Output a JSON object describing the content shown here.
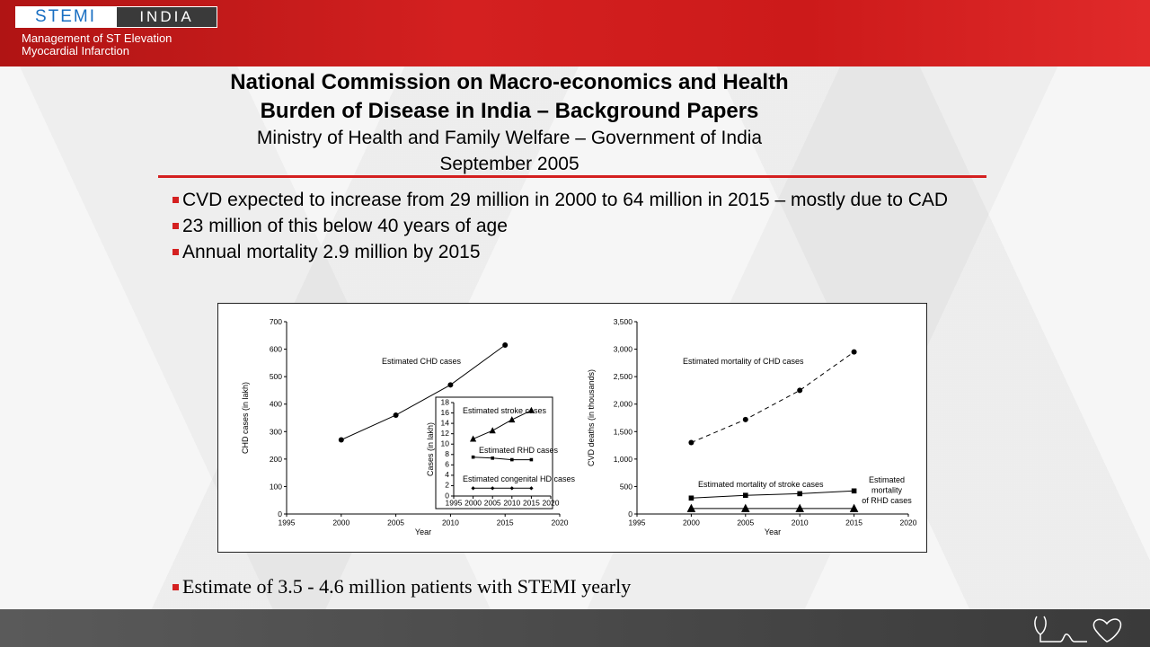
{
  "header": {
    "logo_left": "STEMI",
    "logo_right": "INDIA",
    "subtitle_line1": "Management of ST Elevation",
    "subtitle_line2": "Myocardial Infarction"
  },
  "title": {
    "line1": "National Commission on Macro-economics and Health",
    "line2": "Burden of Disease in India – Background Papers",
    "line3": "Ministry of Health and Family Welfare – Government of India",
    "line4": "September 2005"
  },
  "bullets": [
    "CVD  expected to increase from 29 million in 2000 to 64 million in 2015 – mostly due to CAD",
    "23 million of this below 40 years of age",
    "Annual mortality 2.9 million by 2015"
  ],
  "bottom_bullet": "Estimate of 3.5 - 4.6 million patients with STEMI yearly",
  "colors": {
    "brand_red": "#d42020",
    "logo_blue": "#1a6fc2"
  },
  "chart_data": [
    {
      "type": "line",
      "xlabel": "Year",
      "ylabel": "CHD cases (in lakh)",
      "xlim": [
        1995,
        2020
      ],
      "ylim": [
        0,
        700
      ],
      "xticks": [
        1995,
        2000,
        2005,
        2010,
        2015,
        2020
      ],
      "yticks": [
        0,
        100,
        200,
        300,
        400,
        500,
        600,
        700
      ],
      "series": [
        {
          "name": "Estimated CHD cases",
          "x": [
            2000,
            2005,
            2010,
            2015
          ],
          "values": [
            270,
            360,
            470,
            615
          ]
        }
      ]
    },
    {
      "type": "line",
      "xlabel": "",
      "ylabel": "Cases (in lakh)",
      "xlim": [
        1995,
        2020
      ],
      "ylim": [
        0,
        18
      ],
      "xticks": [
        1995,
        2000,
        2005,
        2010,
        2015,
        2020
      ],
      "yticks": [
        0,
        2,
        4,
        6,
        8,
        10,
        12,
        14,
        16,
        18
      ],
      "series": [
        {
          "name": "Estimated stroke cases",
          "x": [
            2000,
            2005,
            2010,
            2015
          ],
          "values": [
            11,
            12.6,
            14.7,
            16.5
          ]
        },
        {
          "name": "Estimated RHD cases",
          "x": [
            2000,
            2005,
            2010,
            2015
          ],
          "values": [
            7.5,
            7.3,
            7.0,
            7.0
          ]
        },
        {
          "name": "Estimated congenital HD cases",
          "x": [
            2000,
            2005,
            2010,
            2015
          ],
          "values": [
            1.5,
            1.5,
            1.5,
            1.5
          ]
        }
      ]
    },
    {
      "type": "line",
      "xlabel": "Year",
      "ylabel": "CVD deaths (in thousands)",
      "xlim": [
        1995,
        2020
      ],
      "ylim": [
        0,
        3500
      ],
      "xticks": [
        1995,
        2000,
        2005,
        2010,
        2015,
        2020
      ],
      "yticks": [
        "0",
        "500",
        "1,000",
        "1,500",
        "2,000",
        "2,500",
        "3,000",
        "3,500"
      ],
      "series": [
        {
          "name": "Estimated mortality of CHD cases",
          "x": [
            2000,
            2005,
            2010,
            2015
          ],
          "values": [
            1300,
            1720,
            2250,
            2950
          ]
        },
        {
          "name": "Estimated mortality of stroke cases",
          "x": [
            2000,
            2005,
            2010,
            2015
          ],
          "values": [
            290,
            340,
            370,
            420
          ]
        },
        {
          "name": "Estimated mortality of RHD cases",
          "x": [
            2000,
            2005,
            2010,
            2015
          ],
          "values": [
            100,
            100,
            100,
            100
          ]
        }
      ]
    }
  ]
}
